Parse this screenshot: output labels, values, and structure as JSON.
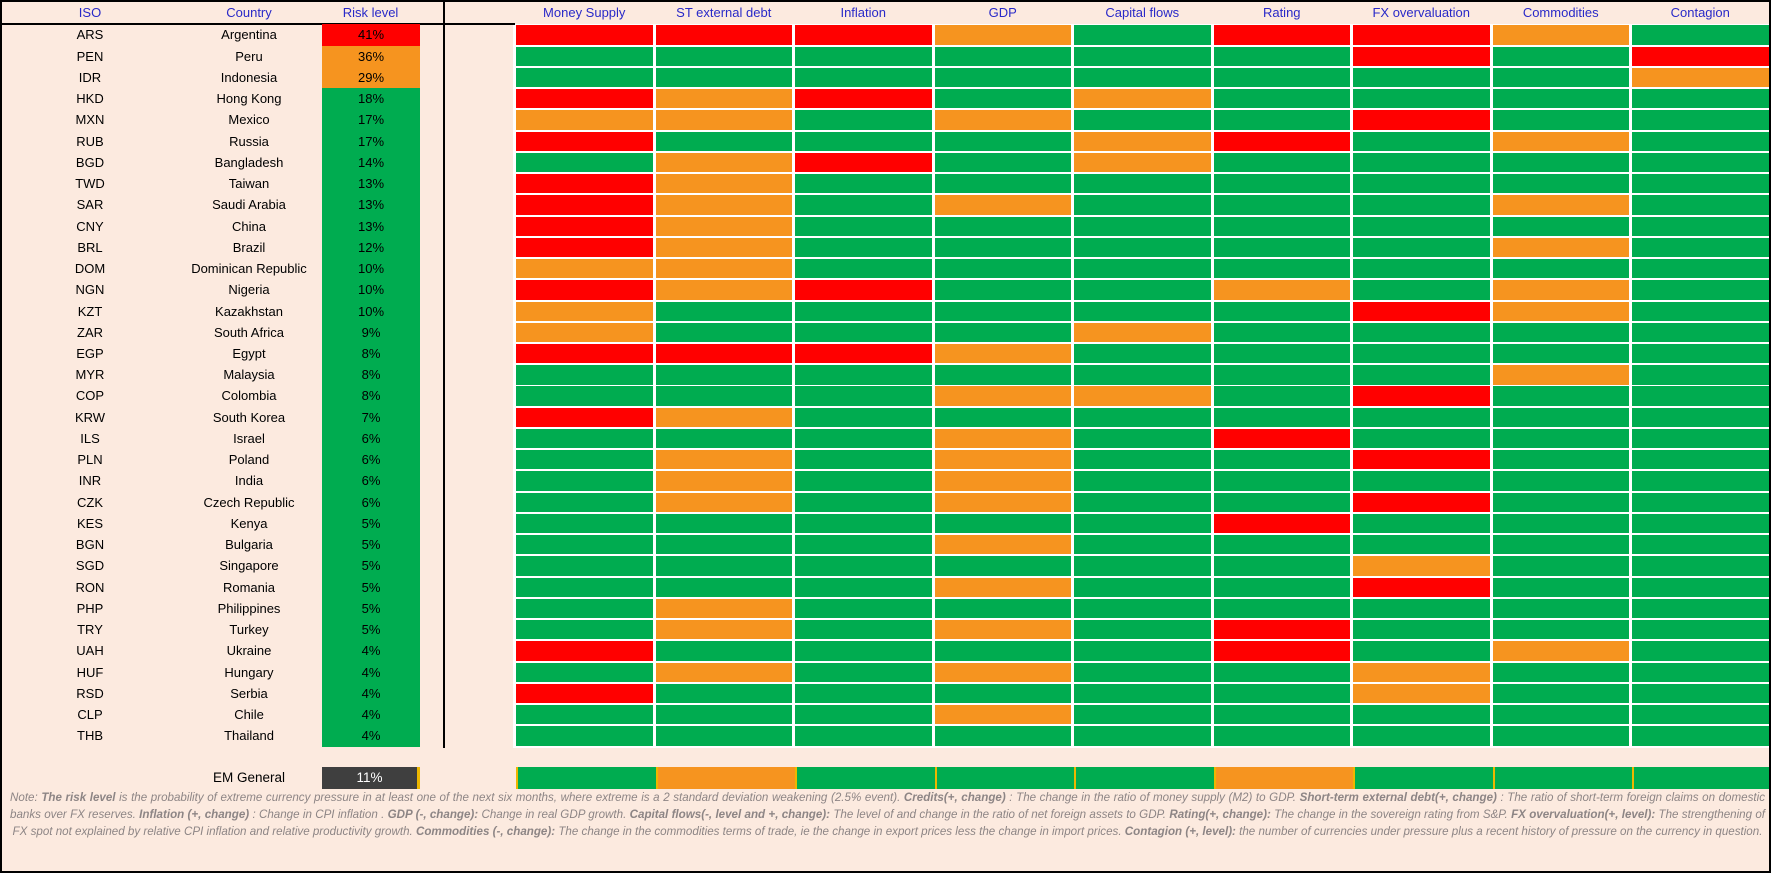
{
  "chart_data": {
    "type": "heatmap",
    "title": "EM currency risk heatmap",
    "left_header": [
      "ISO",
      "Country",
      "Risk level"
    ],
    "columns": [
      "Money Supply",
      "ST external debt",
      "Inflation",
      "GDP",
      "Capital flows",
      "Rating",
      "FX overvaluation",
      "Commodities",
      "Contagion"
    ],
    "colors": {
      "g": "#00AC50",
      "o": "#F6941F",
      "r": "#FF0000",
      "dark": "#3F3F3F"
    },
    "accent": {
      "header_text": "#2929C8",
      "background": "#FCEADF",
      "grid_gap": "#FFFFFF",
      "gold_separator": "#EDB700",
      "note_text": "#8D8585"
    },
    "rows": [
      {
        "iso": "ARS",
        "country": "Argentina",
        "risk": "41%",
        "rc": "r",
        "cells": [
          "r",
          "r",
          "r",
          "o",
          "g",
          "r",
          "r",
          "o",
          "g"
        ]
      },
      {
        "iso": "PEN",
        "country": "Peru",
        "risk": "36%",
        "rc": "o",
        "cells": [
          "g",
          "g",
          "g",
          "g",
          "g",
          "g",
          "r",
          "g",
          "r"
        ]
      },
      {
        "iso": "IDR",
        "country": "Indonesia",
        "risk": "29%",
        "rc": "o",
        "cells": [
          "g",
          "g",
          "g",
          "g",
          "g",
          "g",
          "g",
          "g",
          "o"
        ]
      },
      {
        "iso": "HKD",
        "country": "Hong Kong",
        "risk": "18%",
        "rc": "g",
        "cells": [
          "r",
          "o",
          "r",
          "g",
          "o",
          "g",
          "g",
          "g",
          "g"
        ]
      },
      {
        "iso": "MXN",
        "country": "Mexico",
        "risk": "17%",
        "rc": "g",
        "cells": [
          "o",
          "o",
          "g",
          "o",
          "g",
          "g",
          "r",
          "g",
          "g"
        ]
      },
      {
        "iso": "RUB",
        "country": "Russia",
        "risk": "17%",
        "rc": "g",
        "cells": [
          "r",
          "g",
          "g",
          "g",
          "o",
          "r",
          "g",
          "o",
          "g"
        ]
      },
      {
        "iso": "BGD",
        "country": "Bangladesh",
        "risk": "14%",
        "rc": "g",
        "cells": [
          "g",
          "o",
          "r",
          "g",
          "o",
          "g",
          "g",
          "g",
          "g"
        ]
      },
      {
        "iso": "TWD",
        "country": "Taiwan",
        "risk": "13%",
        "rc": "g",
        "cells": [
          "r",
          "o",
          "g",
          "g",
          "g",
          "g",
          "g",
          "g",
          "g"
        ]
      },
      {
        "iso": "SAR",
        "country": "Saudi Arabia",
        "risk": "13%",
        "rc": "g",
        "cells": [
          "r",
          "o",
          "g",
          "o",
          "g",
          "g",
          "g",
          "o",
          "g"
        ]
      },
      {
        "iso": "CNY",
        "country": "China",
        "risk": "13%",
        "rc": "g",
        "cells": [
          "r",
          "o",
          "g",
          "g",
          "g",
          "g",
          "g",
          "g",
          "g"
        ]
      },
      {
        "iso": "BRL",
        "country": "Brazil",
        "risk": "12%",
        "rc": "g",
        "cells": [
          "r",
          "o",
          "g",
          "g",
          "g",
          "g",
          "g",
          "o",
          "g"
        ]
      },
      {
        "iso": "DOM",
        "country": "Dominican Republic",
        "risk": "10%",
        "rc": "g",
        "cells": [
          "o",
          "o",
          "g",
          "g",
          "g",
          "g",
          "g",
          "g",
          "g"
        ]
      },
      {
        "iso": "NGN",
        "country": "Nigeria",
        "risk": "10%",
        "rc": "g",
        "cells": [
          "r",
          "o",
          "r",
          "g",
          "g",
          "o",
          "g",
          "o",
          "g"
        ]
      },
      {
        "iso": "KZT",
        "country": "Kazakhstan",
        "risk": "10%",
        "rc": "g",
        "cells": [
          "o",
          "g",
          "g",
          "g",
          "g",
          "g",
          "r",
          "o",
          "g"
        ]
      },
      {
        "iso": "ZAR",
        "country": "South Africa",
        "risk": "9%",
        "rc": "g",
        "cells": [
          "o",
          "g",
          "g",
          "g",
          "o",
          "g",
          "g",
          "g",
          "g"
        ]
      },
      {
        "iso": "EGP",
        "country": "Egypt",
        "risk": "8%",
        "rc": "g",
        "cells": [
          "r",
          "r",
          "r",
          "o",
          "g",
          "g",
          "g",
          "g",
          "g"
        ]
      },
      {
        "iso": "MYR",
        "country": "Malaysia",
        "risk": "8%",
        "rc": "g",
        "cells": [
          "g",
          "g",
          "g",
          "g",
          "g",
          "g",
          "g",
          "o",
          "g"
        ]
      },
      {
        "iso": "COP",
        "country": "Colombia",
        "risk": "8%",
        "rc": "g",
        "cells": [
          "g",
          "g",
          "g",
          "o",
          "o",
          "g",
          "r",
          "g",
          "g"
        ]
      },
      {
        "iso": "KRW",
        "country": "South Korea",
        "risk": "7%",
        "rc": "g",
        "cells": [
          "r",
          "o",
          "g",
          "g",
          "g",
          "g",
          "g",
          "g",
          "g"
        ]
      },
      {
        "iso": "ILS",
        "country": "Israel",
        "risk": "6%",
        "rc": "g",
        "cells": [
          "g",
          "g",
          "g",
          "o",
          "g",
          "r",
          "g",
          "g",
          "g"
        ]
      },
      {
        "iso": "PLN",
        "country": "Poland",
        "risk": "6%",
        "rc": "g",
        "cells": [
          "g",
          "o",
          "g",
          "o",
          "g",
          "g",
          "r",
          "g",
          "g"
        ]
      },
      {
        "iso": "INR",
        "country": "India",
        "risk": "6%",
        "rc": "g",
        "cells": [
          "g",
          "o",
          "g",
          "o",
          "g",
          "g",
          "g",
          "g",
          "g"
        ]
      },
      {
        "iso": "CZK",
        "country": "Czech Republic",
        "risk": "6%",
        "rc": "g",
        "cells": [
          "g",
          "o",
          "g",
          "o",
          "g",
          "g",
          "r",
          "g",
          "g"
        ]
      },
      {
        "iso": "KES",
        "country": "Kenya",
        "risk": "5%",
        "rc": "g",
        "cells": [
          "g",
          "g",
          "g",
          "g",
          "g",
          "r",
          "g",
          "g",
          "g"
        ]
      },
      {
        "iso": "BGN",
        "country": "Bulgaria",
        "risk": "5%",
        "rc": "g",
        "cells": [
          "g",
          "g",
          "g",
          "o",
          "g",
          "g",
          "g",
          "g",
          "g"
        ]
      },
      {
        "iso": "SGD",
        "country": "Singapore",
        "risk": "5%",
        "rc": "g",
        "cells": [
          "g",
          "g",
          "g",
          "g",
          "g",
          "g",
          "o",
          "g",
          "g"
        ]
      },
      {
        "iso": "RON",
        "country": "Romania",
        "risk": "5%",
        "rc": "g",
        "cells": [
          "g",
          "g",
          "g",
          "o",
          "g",
          "g",
          "r",
          "g",
          "g"
        ]
      },
      {
        "iso": "PHP",
        "country": "Philippines",
        "risk": "5%",
        "rc": "g",
        "cells": [
          "g",
          "o",
          "g",
          "g",
          "g",
          "g",
          "g",
          "g",
          "g"
        ]
      },
      {
        "iso": "TRY",
        "country": "Turkey",
        "risk": "5%",
        "rc": "g",
        "cells": [
          "g",
          "o",
          "g",
          "o",
          "g",
          "r",
          "g",
          "g",
          "g"
        ]
      },
      {
        "iso": "UAH",
        "country": "Ukraine",
        "risk": "4%",
        "rc": "g",
        "cells": [
          "r",
          "g",
          "g",
          "g",
          "g",
          "r",
          "g",
          "o",
          "g"
        ]
      },
      {
        "iso": "HUF",
        "country": "Hungary",
        "risk": "4%",
        "rc": "g",
        "cells": [
          "g",
          "o",
          "g",
          "o",
          "g",
          "g",
          "o",
          "g",
          "g"
        ]
      },
      {
        "iso": "RSD",
        "country": "Serbia",
        "risk": "4%",
        "rc": "g",
        "cells": [
          "r",
          "g",
          "g",
          "g",
          "g",
          "g",
          "o",
          "g",
          "g"
        ]
      },
      {
        "iso": "CLP",
        "country": "Chile",
        "risk": "4%",
        "rc": "g",
        "cells": [
          "g",
          "g",
          "g",
          "o",
          "g",
          "g",
          "g",
          "g",
          "g"
        ]
      },
      {
        "iso": "THB",
        "country": "Thailand",
        "risk": "4%",
        "rc": "g",
        "cells": [
          "g",
          "g",
          "g",
          "g",
          "g",
          "g",
          "g",
          "g",
          "g"
        ]
      }
    ],
    "summary": {
      "label": "EM General",
      "risk": "11%",
      "rc": "dark",
      "cells": [
        "g",
        "o",
        "g",
        "g",
        "g",
        "o",
        "g",
        "g",
        "g"
      ]
    }
  },
  "note": {
    "segments": [
      {
        "t": "Note:  ",
        "b": false
      },
      {
        "t": "The risk level ",
        "b": true
      },
      {
        "t": " is the probability of extreme currency pressure in at least one of the next six months, where extreme is a 2 standard deviation weakening (2.5% event).  ",
        "b": false
      },
      {
        "t": "Credits(+, change)",
        "b": true
      },
      {
        "t": " : The change in the ratio of money supply (M2) to GDP.  ",
        "b": false
      },
      {
        "t": "Short-term external debt(+, change)",
        "b": true
      },
      {
        "t": " : The ratio of short-term foreign claims on domestic banks over FX reserves.  ",
        "b": false
      },
      {
        "t": "Inflation (+, change)",
        "b": true
      },
      {
        "t": " : Change in CPI inflation .  ",
        "b": false
      },
      {
        "t": "GDP (-, change):",
        "b": true
      },
      {
        "t": "  Change in real GDP growth.  ",
        "b": false
      },
      {
        "t": "Capital flows(-, level and +, change):",
        "b": true
      },
      {
        "t": "  The level of and change in the ratio of net foreign assets to GDP.  ",
        "b": false
      },
      {
        "t": "Rating(+, change):",
        "b": true
      },
      {
        "t": "  The change in the sovereign rating from S&P.  ",
        "b": false
      },
      {
        "t": "FX overvaluation(+, level):",
        "b": true
      },
      {
        "t": "  The strengthening of FX spot not explained by relative CPI inflation and relative productivity growth.  ",
        "b": false
      },
      {
        "t": "Commodities (-, change):",
        "b": true
      },
      {
        "t": "  The change in the commodities terms of trade, ie the change in export prices less the change in import prices.  ",
        "b": false
      },
      {
        "t": "Contagion (+, level):",
        "b": true
      },
      {
        "t": "  the number of currencies under pressure plus a recent history of pressure on the currency in question.",
        "b": false
      }
    ]
  }
}
